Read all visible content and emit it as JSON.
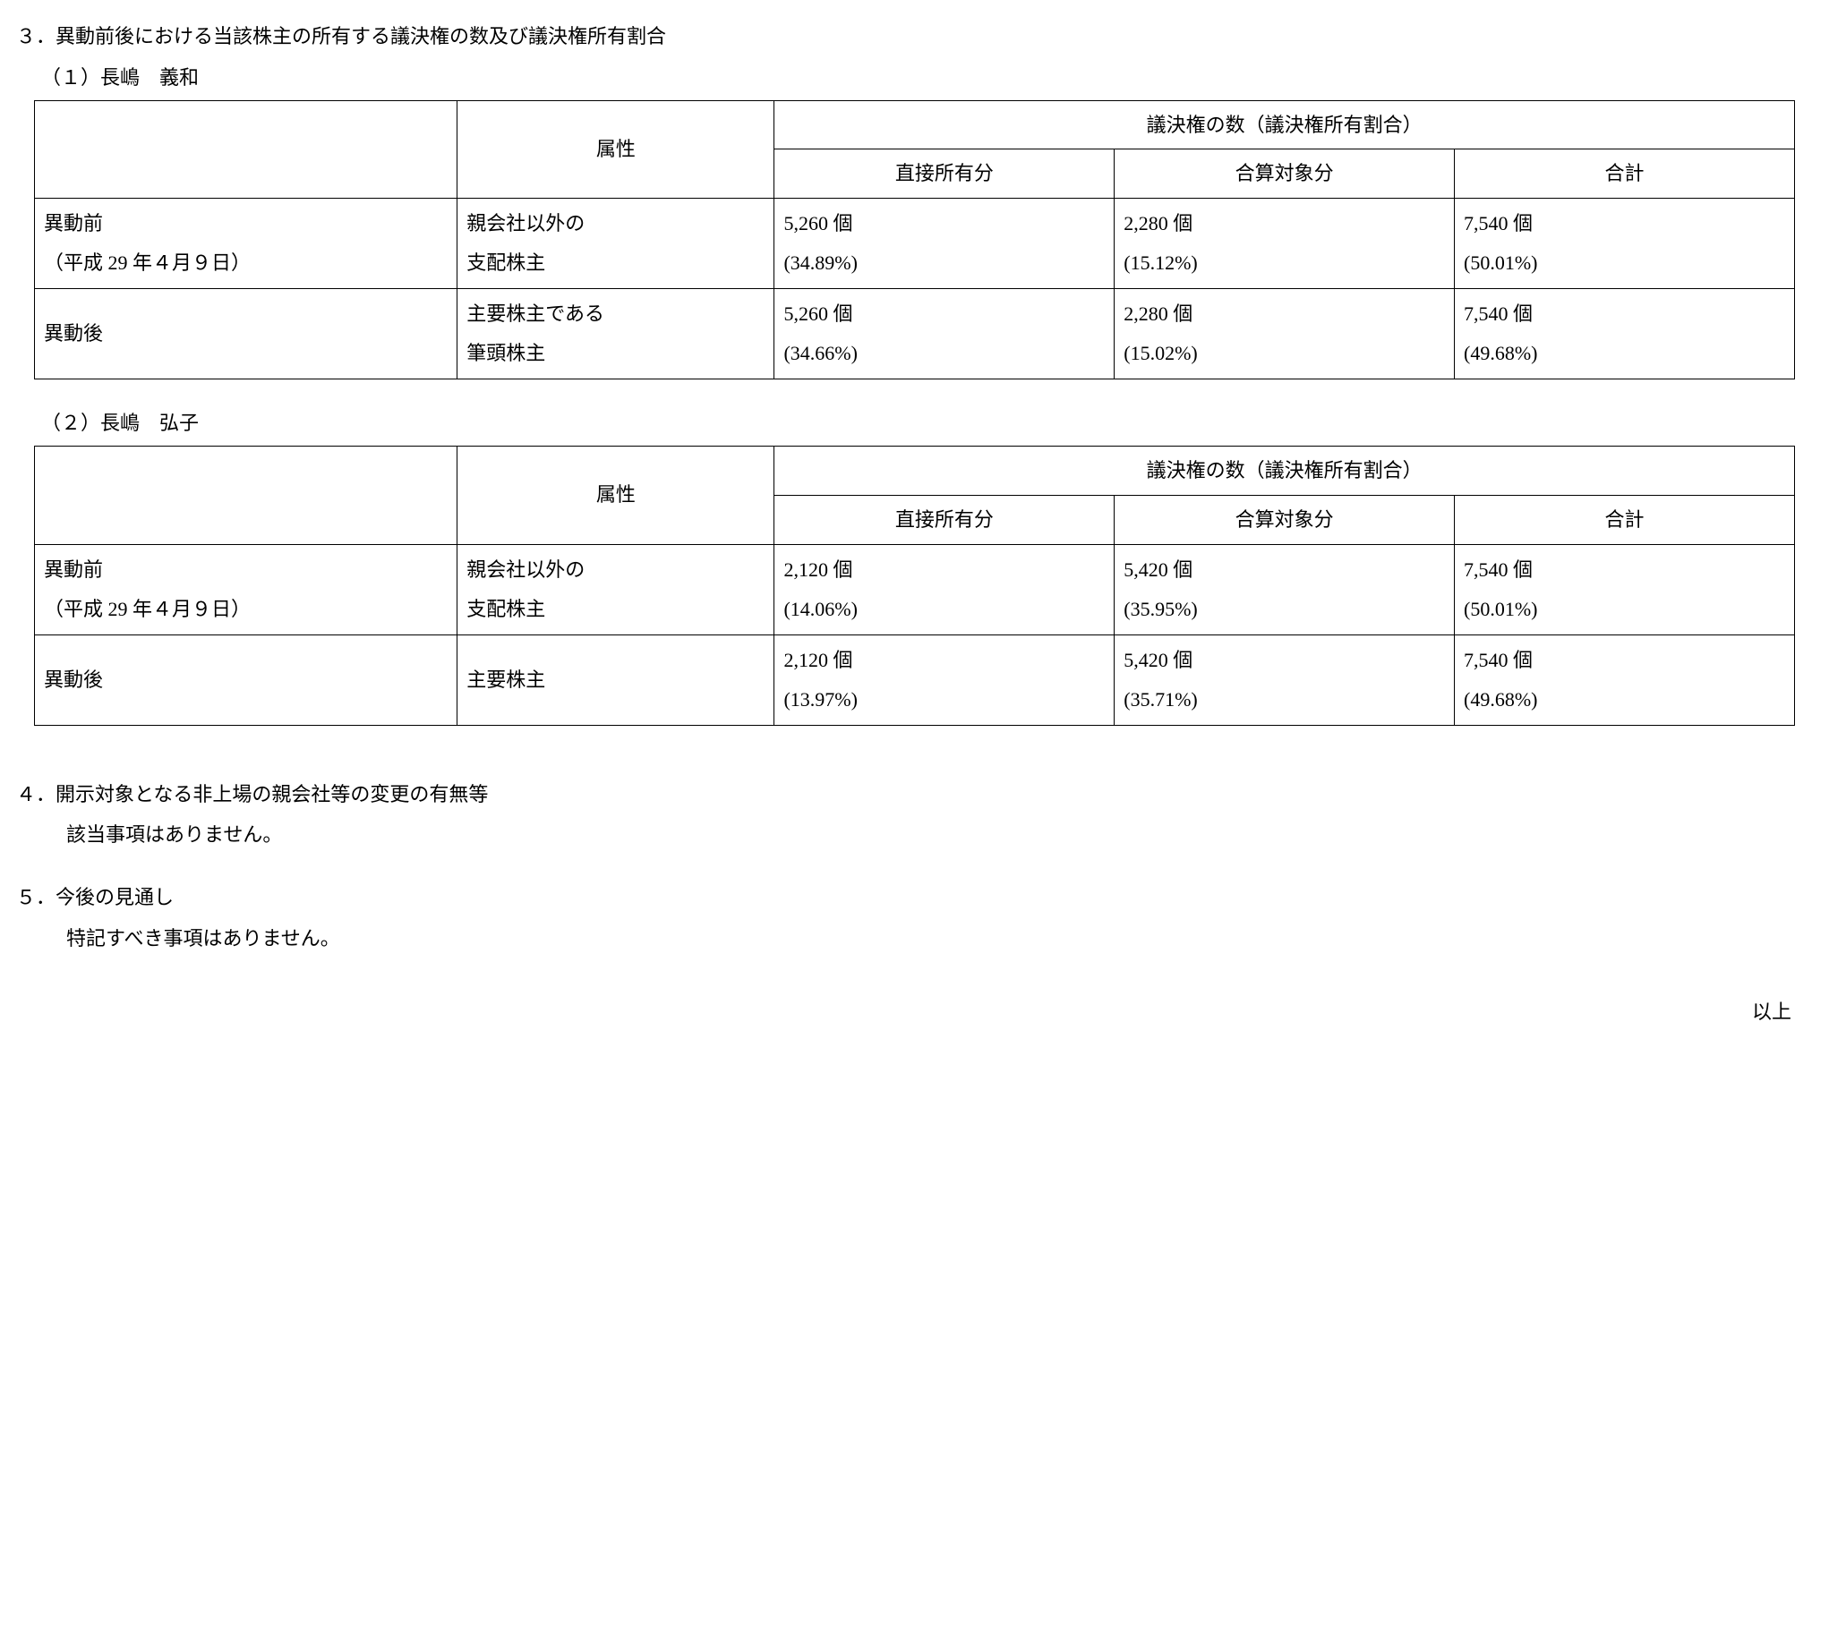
{
  "section3": {
    "heading": "３．異動前後における当該株主の所有する議決権の数及び議決権所有割合",
    "sub1": "（１）長嶋　義和",
    "sub2": "（２）長嶋　弘子"
  },
  "table_headers": {
    "attr": "属性",
    "votes_header": "議決権の数（議決権所有割合）",
    "direct": "直接所有分",
    "combined": "合算対象分",
    "total": "合計"
  },
  "table1": {
    "row1": {
      "label_l1": "異動前",
      "label_l2": "（平成 29 年４月９日）",
      "attr_l1": "親会社以外の",
      "attr_l2": "支配株主",
      "direct_l1": "5,260 個",
      "direct_l2": "(34.89%)",
      "combined_l1": "2,280 個",
      "combined_l2": "(15.12%)",
      "total_l1": "7,540 個",
      "total_l2": "(50.01%)"
    },
    "row2": {
      "label": "異動後",
      "attr_l1": "主要株主である",
      "attr_l2": "筆頭株主",
      "direct_l1": "5,260 個",
      "direct_l2": "(34.66%)",
      "combined_l1": "2,280 個",
      "combined_l2": "(15.02%)",
      "total_l1": "7,540 個",
      "total_l2": "(49.68%)"
    }
  },
  "table2": {
    "row1": {
      "label_l1": "異動前",
      "label_l2": "（平成 29 年４月９日）",
      "attr_l1": "親会社以外の",
      "attr_l2": "支配株主",
      "direct_l1": "2,120 個",
      "direct_l2": "(14.06%)",
      "combined_l1": "5,420 個",
      "combined_l2": "(35.95%)",
      "total_l1": "7,540 個",
      "total_l2": "(50.01%)"
    },
    "row2": {
      "label": "異動後",
      "attr": "主要株主",
      "direct_l1": "2,120 個",
      "direct_l2": "(13.97%)",
      "combined_l1": "5,420 個",
      "combined_l2": "(35.71%)",
      "total_l1": "7,540 個",
      "total_l2": "(49.68%)"
    }
  },
  "section4": {
    "heading": "４．開示対象となる非上場の親会社等の変更の有無等",
    "body": "該当事項はありません。"
  },
  "section5": {
    "heading": "５．今後の見通し",
    "body": "特記すべき事項はありません。"
  },
  "tail": "以上"
}
